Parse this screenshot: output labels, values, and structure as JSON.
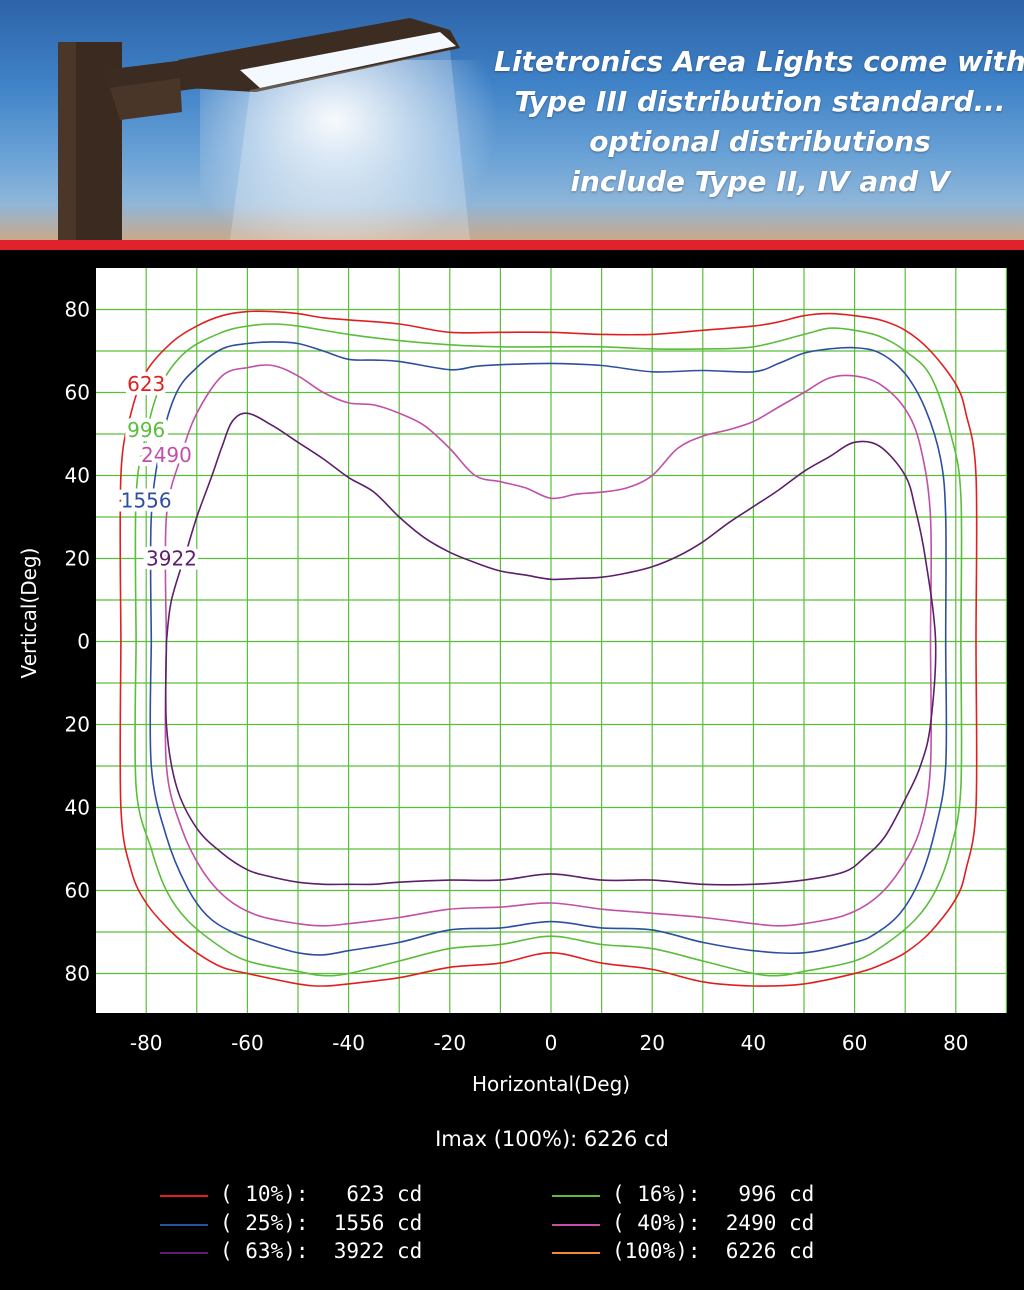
{
  "banner": {
    "lines": [
      "Litetronics Area Lights come with",
      "Type III distribution standard...",
      "optional distributions",
      "include Type II, IV and V"
    ]
  },
  "imax": "Imax (100%): 6226 cd",
  "legend": [
    {
      "text": "( 10%):   623 cd",
      "color": "#e02020"
    },
    {
      "text": "( 16%):   996 cd",
      "color": "#5cbd3c"
    },
    {
      "text": "( 25%):  1556 cd",
      "color": "#2e4fa0"
    },
    {
      "text": "( 40%):  2490 cd",
      "color": "#c24fa8"
    },
    {
      "text": "( 63%):  3922 cd",
      "color": "#5c1f6b"
    },
    {
      "text": "(100%):  6226 cd",
      "color": "#f08a3c"
    }
  ],
  "chart_data": {
    "type": "line",
    "title": "",
    "xlabel": "Horizontal(Deg)",
    "ylabel": "Vertical(Deg)",
    "xlim": [
      -90,
      90
    ],
    "ylim": [
      -90,
      90
    ],
    "grid": true,
    "x_ticks": [
      -80,
      -60,
      -40,
      -20,
      0,
      20,
      40,
      60,
      80
    ],
    "x_tick_labels": [
      "-80",
      "-60",
      "-40",
      "-20",
      "0",
      "20",
      "40",
      "60",
      "80"
    ],
    "y_ticks": [
      80,
      60,
      40,
      20,
      0,
      -20,
      -40,
      -60,
      -80
    ],
    "y_tick_labels": [
      "80",
      "60",
      "40",
      "20",
      "0",
      "20",
      "40",
      "60",
      "80"
    ],
    "series": [
      {
        "name": "623",
        "color": "#e02020",
        "label_at": [
          -80,
          62
        ],
        "points": [
          [
            -85,
            0
          ],
          [
            -85,
            40
          ],
          [
            -83,
            55
          ],
          [
            -80,
            65
          ],
          [
            -75,
            72
          ],
          [
            -70,
            76
          ],
          [
            -65,
            78.5
          ],
          [
            -60,
            79.5
          ],
          [
            -55,
            79.5
          ],
          [
            -50,
            79
          ],
          [
            -45,
            78
          ],
          [
            -40,
            77.5
          ],
          [
            -30,
            76.5
          ],
          [
            -20,
            74.5
          ],
          [
            -10,
            74.5
          ],
          [
            0,
            74.5
          ],
          [
            10,
            74
          ],
          [
            20,
            74
          ],
          [
            30,
            75
          ],
          [
            40,
            76
          ],
          [
            45,
            77
          ],
          [
            50,
            78.5
          ],
          [
            55,
            79
          ],
          [
            60,
            78.5
          ],
          [
            65,
            77.5
          ],
          [
            70,
            75
          ],
          [
            75,
            70
          ],
          [
            80,
            62
          ],
          [
            82,
            55
          ],
          [
            84,
            40
          ],
          [
            84,
            0
          ],
          [
            84,
            -40
          ],
          [
            82,
            -55
          ],
          [
            80,
            -62
          ],
          [
            75,
            -70
          ],
          [
            70,
            -75
          ],
          [
            65,
            -78
          ],
          [
            60,
            -80
          ],
          [
            50,
            -82.5
          ],
          [
            40,
            -83
          ],
          [
            30,
            -82
          ],
          [
            20,
            -79
          ],
          [
            10,
            -77.5
          ],
          [
            0,
            -75
          ],
          [
            -10,
            -77.5
          ],
          [
            -20,
            -78.5
          ],
          [
            -30,
            -81
          ],
          [
            -40,
            -82.5
          ],
          [
            -45,
            -83
          ],
          [
            -50,
            -82.5
          ],
          [
            -60,
            -80
          ],
          [
            -65,
            -78.5
          ],
          [
            -70,
            -75
          ],
          [
            -75,
            -70
          ],
          [
            -80,
            -63
          ],
          [
            -83,
            -55
          ],
          [
            -85,
            -40
          ],
          [
            -85,
            0
          ]
        ]
      },
      {
        "name": "996",
        "color": "#5cbd3c",
        "label_at": [
          -80,
          51
        ],
        "points": [
          [
            -82,
            0
          ],
          [
            -82,
            35
          ],
          [
            -80,
            50
          ],
          [
            -77,
            62
          ],
          [
            -72,
            70
          ],
          [
            -65,
            74.5
          ],
          [
            -60,
            76
          ],
          [
            -55,
            76.5
          ],
          [
            -50,
            76
          ],
          [
            -40,
            74
          ],
          [
            -30,
            72.5
          ],
          [
            -20,
            71.5
          ],
          [
            -10,
            71
          ],
          [
            0,
            71
          ],
          [
            10,
            71
          ],
          [
            20,
            70.5
          ],
          [
            30,
            70.5
          ],
          [
            40,
            71
          ],
          [
            50,
            74
          ],
          [
            55,
            75.5
          ],
          [
            60,
            75
          ],
          [
            65,
            73.5
          ],
          [
            70,
            70
          ],
          [
            75,
            64
          ],
          [
            79,
            50
          ],
          [
            81,
            35
          ],
          [
            81,
            0
          ],
          [
            81,
            -35
          ],
          [
            79,
            -50
          ],
          [
            76,
            -60
          ],
          [
            72,
            -67
          ],
          [
            66,
            -73
          ],
          [
            60,
            -77
          ],
          [
            50,
            -79.5
          ],
          [
            45,
            -80.5
          ],
          [
            40,
            -80
          ],
          [
            30,
            -77
          ],
          [
            20,
            -74
          ],
          [
            10,
            -73
          ],
          [
            0,
            -71
          ],
          [
            -10,
            -73
          ],
          [
            -20,
            -74
          ],
          [
            -30,
            -77
          ],
          [
            -40,
            -80
          ],
          [
            -45,
            -80.5
          ],
          [
            -50,
            -79.5
          ],
          [
            -60,
            -77
          ],
          [
            -66,
            -73
          ],
          [
            -72,
            -67
          ],
          [
            -76,
            -60
          ],
          [
            -79,
            -50
          ],
          [
            -82,
            -35
          ],
          [
            -82,
            0
          ]
        ]
      },
      {
        "name": "2490",
        "color": "#c24fa8",
        "label_at": [
          -76,
          45
        ],
        "points": [
          [
            -76,
            0
          ],
          [
            -76,
            30
          ],
          [
            -73,
            45
          ],
          [
            -70,
            55
          ],
          [
            -65,
            64
          ],
          [
            -60,
            66
          ],
          [
            -55,
            66.5
          ],
          [
            -50,
            64
          ],
          [
            -45,
            60
          ],
          [
            -40,
            57.5
          ],
          [
            -35,
            57
          ],
          [
            -30,
            55
          ],
          [
            -25,
            52
          ],
          [
            -20,
            46.5
          ],
          [
            -15,
            40
          ],
          [
            -10,
            38.5
          ],
          [
            -5,
            37
          ],
          [
            0,
            34.5
          ],
          [
            5,
            35.5
          ],
          [
            10,
            36
          ],
          [
            15,
            37
          ],
          [
            20,
            40
          ],
          [
            25,
            46.5
          ],
          [
            30,
            49.5
          ],
          [
            35,
            51
          ],
          [
            40,
            53
          ],
          [
            45,
            56.5
          ],
          [
            50,
            60
          ],
          [
            55,
            63.5
          ],
          [
            60,
            64
          ],
          [
            65,
            62
          ],
          [
            70,
            56
          ],
          [
            73,
            47
          ],
          [
            75,
            30
          ],
          [
            75,
            0
          ],
          [
            75,
            -30
          ],
          [
            73,
            -45
          ],
          [
            69,
            -55
          ],
          [
            64,
            -62
          ],
          [
            58,
            -66
          ],
          [
            50,
            -68
          ],
          [
            45,
            -68.5
          ],
          [
            40,
            -68
          ],
          [
            30,
            -66.5
          ],
          [
            20,
            -65.5
          ],
          [
            10,
            -64.5
          ],
          [
            0,
            -63
          ],
          [
            -10,
            -64
          ],
          [
            -20,
            -64.5
          ],
          [
            -30,
            -66.5
          ],
          [
            -40,
            -68
          ],
          [
            -45,
            -68.5
          ],
          [
            -50,
            -68
          ],
          [
            -58,
            -66
          ],
          [
            -64,
            -62
          ],
          [
            -69,
            -55
          ],
          [
            -73,
            -45
          ],
          [
            -76,
            -30
          ],
          [
            -76,
            0
          ]
        ]
      },
      {
        "name": "1556",
        "color": "#2e4fa0",
        "label_at": [
          -80,
          34
        ],
        "points": [
          [
            -79,
            0
          ],
          [
            -79,
            30
          ],
          [
            -77,
            48
          ],
          [
            -74,
            60
          ],
          [
            -70,
            66
          ],
          [
            -65,
            70.5
          ],
          [
            -60,
            71.8
          ],
          [
            -55,
            72.2
          ],
          [
            -50,
            71.8
          ],
          [
            -45,
            70
          ],
          [
            -40,
            68
          ],
          [
            -35,
            67.8
          ],
          [
            -30,
            67.5
          ],
          [
            -20,
            65.5
          ],
          [
            -15,
            66.3
          ],
          [
            -10,
            66.7
          ],
          [
            0,
            67
          ],
          [
            10,
            66.5
          ],
          [
            20,
            65
          ],
          [
            30,
            65.3
          ],
          [
            40,
            65
          ],
          [
            45,
            67
          ],
          [
            50,
            69.5
          ],
          [
            55,
            70.5
          ],
          [
            60,
            70.8
          ],
          [
            65,
            69.5
          ],
          [
            70,
            64.5
          ],
          [
            74,
            56
          ],
          [
            77,
            44
          ],
          [
            78,
            30
          ],
          [
            78,
            0
          ],
          [
            78,
            -30
          ],
          [
            76,
            -45
          ],
          [
            73,
            -57
          ],
          [
            69,
            -65.5
          ],
          [
            64,
            -70.5
          ],
          [
            60,
            -72.5
          ],
          [
            50,
            -75
          ],
          [
            40,
            -74.5
          ],
          [
            30,
            -72.5
          ],
          [
            20,
            -69.5
          ],
          [
            10,
            -69
          ],
          [
            0,
            -67.5
          ],
          [
            -10,
            -69
          ],
          [
            -20,
            -69.5
          ],
          [
            -30,
            -72.5
          ],
          [
            -40,
            -74.5
          ],
          [
            -45,
            -75.5
          ],
          [
            -50,
            -75
          ],
          [
            -56,
            -73
          ],
          [
            -63,
            -70
          ],
          [
            -68,
            -66
          ],
          [
            -72,
            -59
          ],
          [
            -76,
            -47
          ],
          [
            -79,
            -30
          ],
          [
            -79,
            0
          ]
        ]
      },
      {
        "name": "3922",
        "color": "#5c1f6b",
        "label_at": [
          -75,
          20
        ],
        "points": [
          [
            -76,
            0
          ],
          [
            -75,
            10
          ],
          [
            -72,
            22
          ],
          [
            -70,
            30
          ],
          [
            -67,
            40
          ],
          [
            -65,
            47
          ],
          [
            -63,
            53
          ],
          [
            -60,
            55
          ],
          [
            -55,
            52
          ],
          [
            -50,
            48
          ],
          [
            -45,
            44
          ],
          [
            -40,
            39.5
          ],
          [
            -35,
            36
          ],
          [
            -30,
            30
          ],
          [
            -25,
            25
          ],
          [
            -20,
            21.5
          ],
          [
            -15,
            19
          ],
          [
            -10,
            17
          ],
          [
            -5,
            16
          ],
          [
            0,
            15
          ],
          [
            5,
            15.2
          ],
          [
            10,
            15.5
          ],
          [
            15,
            16.5
          ],
          [
            20,
            18
          ],
          [
            25,
            20.5
          ],
          [
            30,
            24
          ],
          [
            35,
            28.5
          ],
          [
            40,
            32.5
          ],
          [
            45,
            36.5
          ],
          [
            50,
            41
          ],
          [
            55,
            44.5
          ],
          [
            60,
            48
          ],
          [
            65,
            47
          ],
          [
            70,
            40
          ],
          [
            72,
            32
          ],
          [
            74,
            20
          ],
          [
            76,
            0
          ],
          [
            75,
            -20
          ],
          [
            73,
            -30
          ],
          [
            70,
            -38
          ],
          [
            66,
            -47
          ],
          [
            62,
            -52
          ],
          [
            58,
            -55.5
          ],
          [
            50,
            -57.5
          ],
          [
            40,
            -58.5
          ],
          [
            30,
            -58.5
          ],
          [
            20,
            -57.5
          ],
          [
            10,
            -57.5
          ],
          [
            0,
            -56
          ],
          [
            -10,
            -57.5
          ],
          [
            -20,
            -57.5
          ],
          [
            -30,
            -58
          ],
          [
            -35,
            -58.5
          ],
          [
            -40,
            -58.5
          ],
          [
            -45,
            -58.5
          ],
          [
            -50,
            -58
          ],
          [
            -56,
            -56.5
          ],
          [
            -60,
            -55
          ],
          [
            -65,
            -51
          ],
          [
            -70,
            -45
          ],
          [
            -74,
            -35
          ],
          [
            -76,
            -20
          ],
          [
            -76,
            0
          ]
        ]
      }
    ]
  }
}
